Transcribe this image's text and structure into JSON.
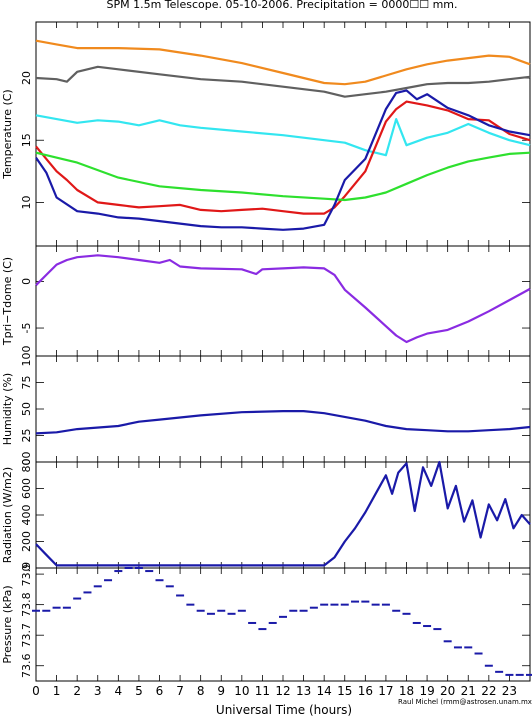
{
  "figure": {
    "title": "SPM 1.5m Telescope. 05-10-2006. Precipitation = 0000☐☐ mm.",
    "xlabel": "Universal Time (hours)",
    "credit": "Raul Michel (rmm@astrosen.unam.mx)"
  },
  "chart_data": [
    {
      "type": "line",
      "ylabel": "Temperature (C)",
      "xlim": [
        0,
        24
      ],
      "ylim": [
        6.5,
        24.5
      ],
      "yticks": [
        10,
        15,
        20
      ],
      "series": [
        {
          "color": "#f08a1e",
          "x": [
            0,
            1,
            2,
            4,
            6,
            8,
            10,
            12,
            14,
            15,
            16,
            17,
            18,
            19,
            20,
            21,
            22,
            23,
            24
          ],
          "y": [
            23,
            22.7,
            22.4,
            22.4,
            22.3,
            21.8,
            21.2,
            20.4,
            19.6,
            19.5,
            19.7,
            20.2,
            20.7,
            21.1,
            21.4,
            21.6,
            21.8,
            21.7,
            21.1
          ]
        },
        {
          "color": "#606060",
          "x": [
            0,
            1,
            1.5,
            2,
            3,
            4,
            6,
            8,
            10,
            12,
            14,
            15,
            16,
            17,
            18,
            19,
            20,
            21,
            22,
            23,
            24
          ],
          "y": [
            20,
            19.9,
            19.7,
            20.5,
            20.9,
            20.7,
            20.3,
            19.9,
            19.7,
            19.3,
            18.9,
            18.5,
            18.7,
            18.9,
            19.2,
            19.5,
            19.6,
            19.6,
            19.7,
            19.9,
            20.1
          ]
        },
        {
          "color": "#33e6f0",
          "x": [
            0,
            1,
            2,
            3,
            4,
            5,
            6,
            7,
            8,
            10,
            12,
            14,
            15,
            16,
            17,
            17.5,
            18,
            19,
            20,
            21,
            22,
            23,
            24
          ],
          "y": [
            17,
            16.7,
            16.4,
            16.6,
            16.5,
            16.2,
            16.6,
            16.2,
            16.0,
            15.7,
            15.4,
            15.0,
            14.8,
            14.2,
            13.8,
            16.7,
            14.6,
            15.2,
            15.6,
            16.3,
            15.6,
            15.0,
            14.6
          ]
        },
        {
          "color": "#e01818",
          "x": [
            0,
            0.5,
            1,
            1.5,
            2,
            3,
            4,
            5,
            6,
            7,
            8,
            9,
            10,
            11,
            12,
            13,
            14,
            14.5,
            15,
            16,
            17,
            17.5,
            18,
            19,
            20,
            21,
            22,
            23,
            24
          ],
          "y": [
            14.5,
            13.5,
            12.5,
            11.8,
            11.0,
            10.0,
            9.8,
            9.6,
            9.7,
            9.8,
            9.4,
            9.3,
            9.4,
            9.5,
            9.3,
            9.1,
            9.1,
            9.6,
            10.5,
            12.5,
            16.5,
            17.5,
            18.1,
            17.8,
            17.4,
            16.7,
            16.6,
            15.5,
            15.0
          ]
        },
        {
          "color": "#2ee02e",
          "x": [
            0,
            2,
            4,
            6,
            8,
            10,
            12,
            14,
            15,
            16,
            17,
            18,
            19,
            20,
            21,
            22,
            23,
            24
          ],
          "y": [
            14.0,
            13.2,
            12.0,
            11.3,
            11.0,
            10.8,
            10.5,
            10.3,
            10.2,
            10.4,
            10.8,
            11.5,
            12.2,
            12.8,
            13.3,
            13.6,
            13.9,
            14.0
          ]
        },
        {
          "color": "#1a1aa8",
          "x": [
            0,
            0.5,
            1,
            2,
            3,
            4,
            5,
            6,
            7,
            8,
            9,
            10,
            11,
            12,
            13,
            14,
            14.5,
            15,
            16,
            17,
            17.5,
            18,
            18.5,
            19,
            20,
            21,
            22,
            23,
            24
          ],
          "y": [
            13.6,
            12.4,
            10.4,
            9.3,
            9.1,
            8.8,
            8.7,
            8.5,
            8.3,
            8.1,
            8.0,
            8.0,
            7.9,
            7.8,
            7.9,
            8.2,
            9.8,
            11.8,
            13.5,
            17.5,
            18.8,
            19.0,
            18.3,
            18.7,
            17.6,
            17.0,
            16.2,
            15.7,
            15.4
          ]
        }
      ]
    },
    {
      "type": "line",
      "ylabel": "Tpri−Tdome (C)",
      "xlim": [
        0,
        24
      ],
      "ylim": [
        -8,
        3.8
      ],
      "yticks": [
        -5,
        0
      ],
      "series": [
        {
          "color": "#8a2be2",
          "x": [
            0,
            0.5,
            1,
            1.5,
            2,
            3,
            4,
            5,
            6,
            6.5,
            7,
            8,
            10,
            10.7,
            11,
            12,
            13,
            14,
            14.5,
            15,
            16,
            17,
            17.5,
            18,
            18.5,
            19,
            20,
            21,
            22,
            23,
            24
          ],
          "y": [
            -0.4,
            0.7,
            1.8,
            2.3,
            2.6,
            2.8,
            2.6,
            2.3,
            2.0,
            2.3,
            1.6,
            1.4,
            1.3,
            0.8,
            1.3,
            1.4,
            1.5,
            1.4,
            0.7,
            -0.9,
            -2.8,
            -4.8,
            -5.8,
            -6.5,
            -6.0,
            -5.6,
            -5.2,
            -4.3,
            -3.2,
            -2.0,
            -0.8
          ]
        }
      ]
    },
    {
      "type": "line",
      "ylabel": "Humidity (%)",
      "xlim": [
        0,
        24
      ],
      "ylim": [
        0,
        100
      ],
      "yticks": [
        0,
        25,
        50,
        75,
        100
      ],
      "series": [
        {
          "color": "#1a1aa8",
          "x": [
            0,
            1,
            2,
            4,
            5,
            6,
            8,
            10,
            12,
            13,
            14,
            16,
            17,
            18,
            19,
            20,
            21,
            22,
            23,
            24
          ],
          "y": [
            27,
            28,
            31,
            34,
            38,
            40,
            44,
            47,
            48,
            48,
            46,
            39,
            34,
            31,
            30,
            29,
            29,
            30,
            31,
            33
          ]
        }
      ]
    },
    {
      "type": "line",
      "ylabel": "Radiation (W/m2)",
      "xlim": [
        0,
        24
      ],
      "ylim": [
        0,
        800
      ],
      "yticks": [
        0,
        200,
        400,
        600,
        800
      ],
      "series": [
        {
          "color": "#1a1aa8",
          "x": [
            0,
            0.5,
            1,
            2,
            4,
            6,
            8,
            10,
            12,
            14,
            14.5,
            15,
            15.5,
            16,
            16.5,
            17,
            17.3,
            17.6,
            18,
            18.4,
            18.8,
            19.2,
            19.6,
            20,
            20.4,
            20.8,
            21.2,
            21.6,
            22,
            22.4,
            22.8,
            23.2,
            23.6,
            24
          ],
          "y": [
            180,
            100,
            20,
            20,
            20,
            20,
            20,
            20,
            20,
            20,
            80,
            200,
            300,
            420,
            560,
            700,
            560,
            720,
            790,
            430,
            760,
            620,
            800,
            450,
            620,
            350,
            510,
            230,
            480,
            360,
            520,
            300,
            400,
            330
          ]
        }
      ]
    },
    {
      "type": "scatter",
      "ylabel": "Pressure (kPa)",
      "xlim": [
        0,
        24
      ],
      "ylim": [
        73.55,
        73.92
      ],
      "yticks": [
        73.6,
        73.7,
        73.8,
        73.9
      ],
      "yticklabels": [
        "73.6",
        "73.7",
        "73.8",
        "73.9"
      ],
      "series": [
        {
          "color": "#1a1aa8",
          "x": [
            0,
            0.5,
            1,
            1.5,
            2,
            2.5,
            3,
            3.5,
            4,
            4.5,
            5,
            5.5,
            6,
            6.5,
            7,
            7.5,
            8,
            8.5,
            9,
            9.5,
            10,
            10.5,
            11,
            11.5,
            12,
            12.5,
            13,
            13.5,
            14,
            14.5,
            15,
            15.5,
            16,
            16.5,
            17,
            17.5,
            18,
            18.5,
            19,
            19.5,
            20,
            20.5,
            21,
            21.5,
            22,
            22.5,
            23,
            23.5,
            24
          ],
          "y": [
            73.78,
            73.78,
            73.79,
            73.79,
            73.82,
            73.84,
            73.86,
            73.88,
            73.91,
            73.92,
            73.92,
            73.91,
            73.88,
            73.86,
            73.83,
            73.8,
            73.78,
            73.77,
            73.78,
            73.77,
            73.78,
            73.74,
            73.72,
            73.74,
            73.76,
            73.78,
            73.78,
            73.79,
            73.8,
            73.8,
            73.8,
            73.81,
            73.81,
            73.8,
            73.8,
            73.78,
            73.77,
            73.74,
            73.73,
            73.72,
            73.68,
            73.66,
            73.66,
            73.64,
            73.6,
            73.58,
            73.57,
            73.57,
            73.57
          ]
        }
      ]
    }
  ]
}
